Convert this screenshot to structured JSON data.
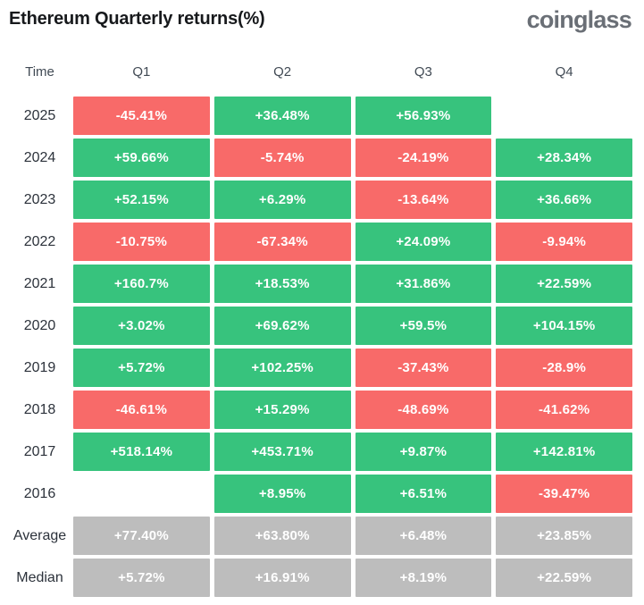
{
  "header": {
    "title": "Ethereum Quarterly returns(%)",
    "logo": "coinglass"
  },
  "table": {
    "columns": [
      "Time",
      "Q1",
      "Q2",
      "Q3",
      "Q4"
    ],
    "rows": [
      {
        "label": "2025",
        "cells": [
          {
            "text": "-45.41%",
            "state": "red"
          },
          {
            "text": "+36.48%",
            "state": "green"
          },
          {
            "text": "+56.93%",
            "state": "green"
          },
          {
            "text": "",
            "state": "none"
          }
        ]
      },
      {
        "label": "2024",
        "cells": [
          {
            "text": "+59.66%",
            "state": "green"
          },
          {
            "text": "-5.74%",
            "state": "red"
          },
          {
            "text": "-24.19%",
            "state": "red"
          },
          {
            "text": "+28.34%",
            "state": "green"
          }
        ]
      },
      {
        "label": "2023",
        "cells": [
          {
            "text": "+52.15%",
            "state": "green"
          },
          {
            "text": "+6.29%",
            "state": "green"
          },
          {
            "text": "-13.64%",
            "state": "red"
          },
          {
            "text": "+36.66%",
            "state": "green"
          }
        ]
      },
      {
        "label": "2022",
        "cells": [
          {
            "text": "-10.75%",
            "state": "red"
          },
          {
            "text": "-67.34%",
            "state": "red"
          },
          {
            "text": "+24.09%",
            "state": "green"
          },
          {
            "text": "-9.94%",
            "state": "red"
          }
        ]
      },
      {
        "label": "2021",
        "cells": [
          {
            "text": "+160.7%",
            "state": "green"
          },
          {
            "text": "+18.53%",
            "state": "green"
          },
          {
            "text": "+31.86%",
            "state": "green"
          },
          {
            "text": "+22.59%",
            "state": "green"
          }
        ]
      },
      {
        "label": "2020",
        "cells": [
          {
            "text": "+3.02%",
            "state": "green"
          },
          {
            "text": "+69.62%",
            "state": "green"
          },
          {
            "text": "+59.5%",
            "state": "green"
          },
          {
            "text": "+104.15%",
            "state": "green"
          }
        ]
      },
      {
        "label": "2019",
        "cells": [
          {
            "text": "+5.72%",
            "state": "green"
          },
          {
            "text": "+102.25%",
            "state": "green"
          },
          {
            "text": "-37.43%",
            "state": "red"
          },
          {
            "text": "-28.9%",
            "state": "red"
          }
        ]
      },
      {
        "label": "2018",
        "cells": [
          {
            "text": "-46.61%",
            "state": "red"
          },
          {
            "text": "+15.29%",
            "state": "green"
          },
          {
            "text": "-48.69%",
            "state": "red"
          },
          {
            "text": "-41.62%",
            "state": "red"
          }
        ]
      },
      {
        "label": "2017",
        "cells": [
          {
            "text": "+518.14%",
            "state": "green"
          },
          {
            "text": "+453.71%",
            "state": "green"
          },
          {
            "text": "+9.87%",
            "state": "green"
          },
          {
            "text": "+142.81%",
            "state": "green"
          }
        ]
      },
      {
        "label": "2016",
        "cells": [
          {
            "text": "",
            "state": "none"
          },
          {
            "text": "+8.95%",
            "state": "green"
          },
          {
            "text": "+6.51%",
            "state": "green"
          },
          {
            "text": "-39.47%",
            "state": "red"
          }
        ]
      },
      {
        "label": "Average",
        "cells": [
          {
            "text": "+77.40%",
            "state": "gray"
          },
          {
            "text": "+63.80%",
            "state": "gray"
          },
          {
            "text": "+6.48%",
            "state": "gray"
          },
          {
            "text": "+23.85%",
            "state": "gray"
          }
        ]
      },
      {
        "label": "Median",
        "cells": [
          {
            "text": "+5.72%",
            "state": "gray"
          },
          {
            "text": "+16.91%",
            "state": "gray"
          },
          {
            "text": "+8.19%",
            "state": "gray"
          },
          {
            "text": "+22.59%",
            "state": "gray"
          }
        ]
      }
    ]
  },
  "colors": {
    "positive_green": "#37c37d",
    "negative_red": "#f86a69",
    "summary_gray": "#bdbdbd"
  },
  "chart_data": {
    "type": "heatmap",
    "title": "Ethereum Quarterly returns(%)",
    "unit": "%",
    "columns": [
      "Q1",
      "Q2",
      "Q3",
      "Q4"
    ],
    "rows": [
      {
        "time": "2025",
        "values": [
          -45.41,
          36.48,
          56.93,
          null
        ]
      },
      {
        "time": "2024",
        "values": [
          59.66,
          -5.74,
          -24.19,
          28.34
        ]
      },
      {
        "time": "2023",
        "values": [
          52.15,
          6.29,
          -13.64,
          36.66
        ]
      },
      {
        "time": "2022",
        "values": [
          -10.75,
          -67.34,
          24.09,
          -9.94
        ]
      },
      {
        "time": "2021",
        "values": [
          160.7,
          18.53,
          31.86,
          22.59
        ]
      },
      {
        "time": "2020",
        "values": [
          3.02,
          69.62,
          59.5,
          104.15
        ]
      },
      {
        "time": "2019",
        "values": [
          5.72,
          102.25,
          -37.43,
          -28.9
        ]
      },
      {
        "time": "2018",
        "values": [
          -46.61,
          15.29,
          -48.69,
          -41.62
        ]
      },
      {
        "time": "2017",
        "values": [
          518.14,
          453.71,
          9.87,
          142.81
        ]
      },
      {
        "time": "2016",
        "values": [
          null,
          8.95,
          6.51,
          -39.47
        ]
      },
      {
        "time": "Average",
        "values": [
          77.4,
          63.8,
          6.48,
          23.85
        ]
      },
      {
        "time": "Median",
        "values": [
          5.72,
          16.91,
          8.19,
          22.59
        ]
      }
    ],
    "color_rule": "positive=green, negative=red, Average and Median rows=gray, missing quarter=blank"
  }
}
